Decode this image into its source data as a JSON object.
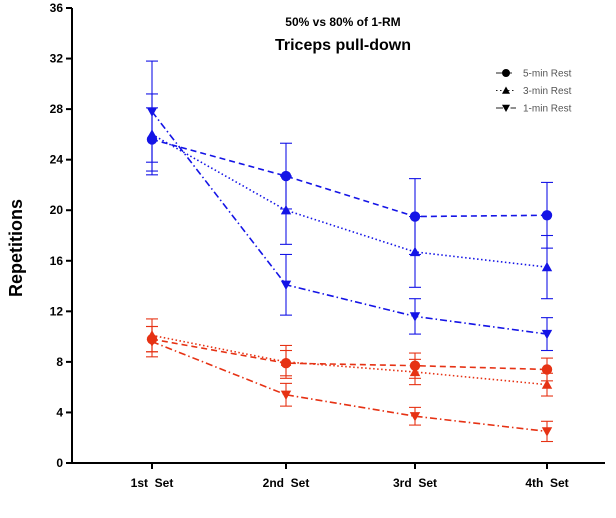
{
  "chart_data": {
    "type": "line",
    "title": "50% vs 80% of 1-RM",
    "subtitle": "Triceps pull-down",
    "xlabel": "",
    "ylabel": "Repetitions",
    "categories": [
      "1st  Set",
      "2nd  Set",
      "3rd  Set",
      "4th  Set"
    ],
    "ylim": [
      0,
      36
    ],
    "yticks": [
      0,
      4,
      8,
      12,
      16,
      20,
      24,
      28,
      32,
      36
    ],
    "legend": [
      {
        "label": "5-min Rest",
        "marker": "circle",
        "line": "dashed"
      },
      {
        "label": "3-min Rest",
        "marker": "triangle-up",
        "line": "dotted"
      },
      {
        "label": "1-min Rest",
        "marker": "triangle-down",
        "line": "dashdot"
      }
    ],
    "legend_position": "top-right",
    "colors": {
      "intensity_50": "#1414e6",
      "intensity_80": "#e63214"
    },
    "series": [
      {
        "name": "5-min Rest",
        "group": "50% of 1-RM",
        "color": "#1414e6",
        "marker": "circle",
        "line": "dashed",
        "values": [
          25.6,
          22.7,
          19.5,
          19.6
        ],
        "errors": [
          2.5,
          2.6,
          3.0,
          2.6
        ]
      },
      {
        "name": "3-min Rest",
        "group": "50% of 1-RM",
        "color": "#1414e6",
        "marker": "triangle-up",
        "line": "dotted",
        "values": [
          26.0,
          20.0,
          16.7,
          15.5
        ],
        "errors": [
          3.2,
          2.7,
          2.8,
          2.5
        ]
      },
      {
        "name": "1-min Rest",
        "group": "50% of 1-RM",
        "color": "#1414e6",
        "marker": "triangle-down",
        "line": "dashdot",
        "values": [
          27.8,
          14.1,
          11.6,
          10.2
        ],
        "errors": [
          4.0,
          2.4,
          1.4,
          1.3
        ]
      },
      {
        "name": "5-min Rest",
        "group": "80% of 1-RM",
        "color": "#e63214",
        "marker": "circle",
        "line": "dashed",
        "values": [
          9.8,
          7.9,
          7.7,
          7.4
        ],
        "errors": [
          1.0,
          1.0,
          1.0,
          0.9
        ]
      },
      {
        "name": "3-min Rest",
        "group": "80% of 1-RM",
        "color": "#e63214",
        "marker": "triangle-up",
        "line": "dotted",
        "values": [
          10.1,
          8.0,
          7.2,
          6.2
        ],
        "errors": [
          1.3,
          1.3,
          1.0,
          0.9
        ]
      },
      {
        "name": "1-min Rest",
        "group": "80% of 1-RM",
        "color": "#e63214",
        "marker": "triangle-down",
        "line": "dashdot",
        "values": [
          9.6,
          5.4,
          3.7,
          2.5
        ],
        "errors": [
          1.2,
          0.9,
          0.7,
          0.8
        ]
      }
    ]
  }
}
